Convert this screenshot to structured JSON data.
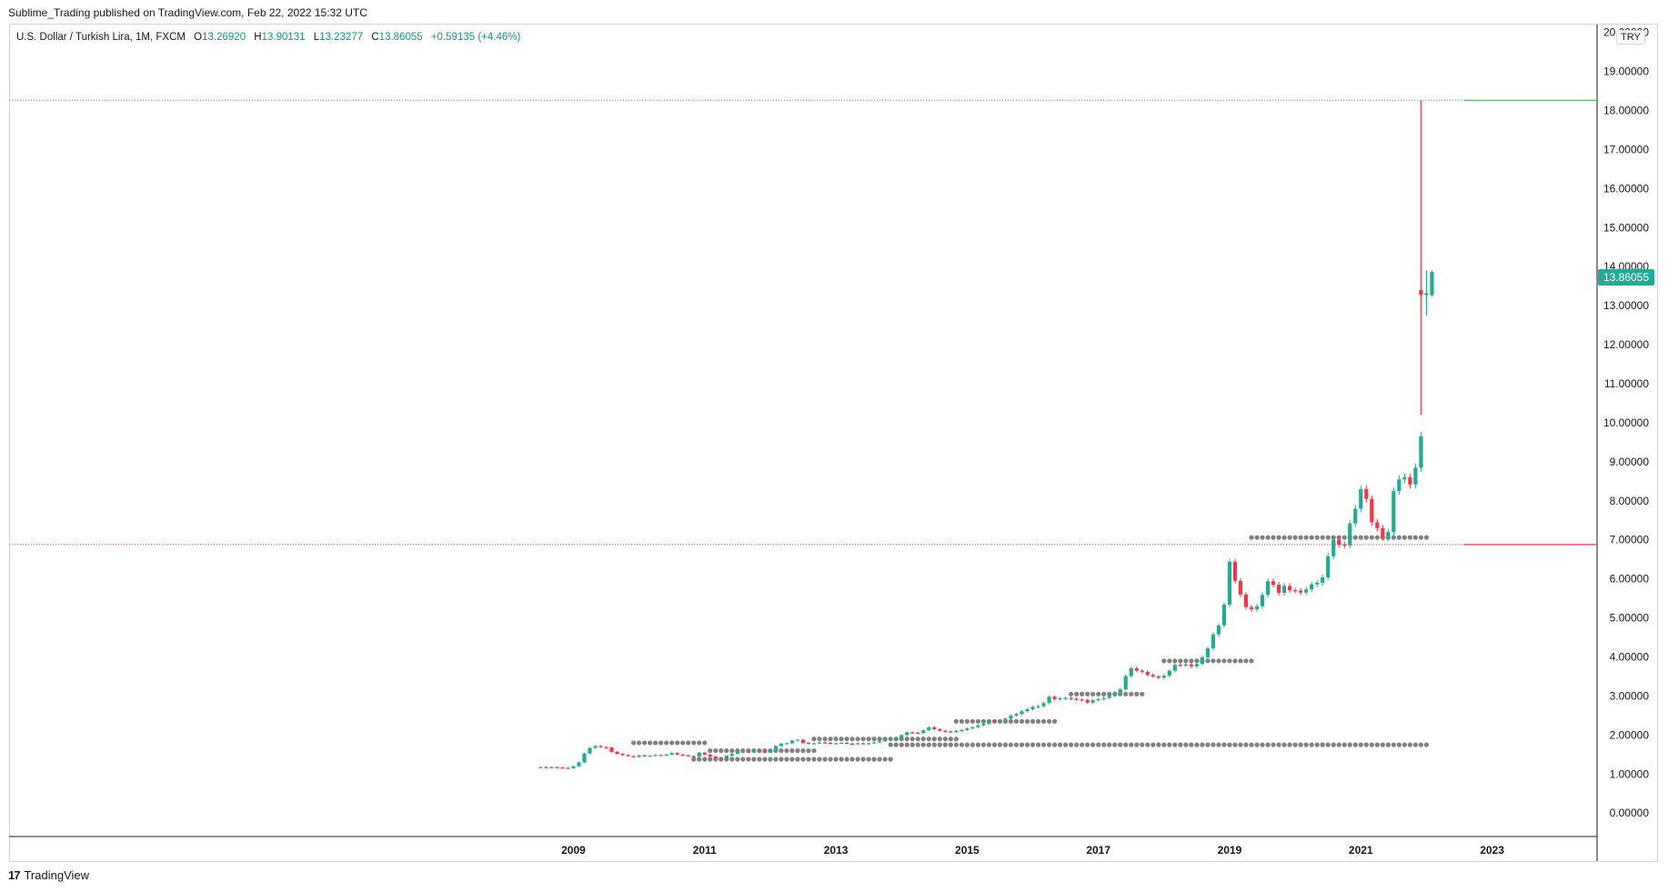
{
  "header": {
    "published": "Sublime_Trading published on TradingView.com, Feb 22, 2022 15:32 UTC"
  },
  "legend": {
    "symbol": "U.S. Dollar / Turkish Lira, 1M, FXCM",
    "open_label": "O",
    "open": "13.26920",
    "high_label": "H",
    "high": "13.90131",
    "low_label": "L",
    "low": "13.23277",
    "close_label": "C",
    "close": "13.86055",
    "change": "+0.59135 (+4.46%)"
  },
  "price_axis": {
    "currency": "TRY",
    "last_price": "13.86055"
  },
  "footer": {
    "brand": "TradingView",
    "logo": "17"
  },
  "colors": {
    "up": "#22ab94",
    "down": "#f23645",
    "dots": "#808080",
    "green_line": "#4caf50",
    "red_line": "#f23645",
    "grid": "#d1d4dc"
  },
  "chart_data": {
    "type": "candlestick",
    "y_ticks": [
      "20.00000",
      "19.00000",
      "18.00000",
      "17.00000",
      "16.00000",
      "15.00000",
      "14.00000",
      "13.00000",
      "12.00000",
      "11.00000",
      "10.00000",
      "9.00000",
      "8.00000",
      "7.00000",
      "6.00000",
      "5.00000",
      "4.00000",
      "3.00000",
      "2.00000",
      "1.00000",
      "0.00000"
    ],
    "x_ticks": [
      "2009",
      "2011",
      "2013",
      "2015",
      "2017",
      "2019",
      "2021",
      "2023"
    ],
    "ylim": [
      -0.6,
      20.2
    ],
    "xlim": [
      2000.4,
      2024.6
    ],
    "horizontal_lines": [
      {
        "price": 18.26,
        "color": "green"
      },
      {
        "price": 6.88,
        "color": "red"
      }
    ],
    "key_candles": [
      {
        "date": "2021-12",
        "open": 13.4,
        "high": 18.26,
        "low": 10.2,
        "close": 13.27
      },
      {
        "date": "2022-01",
        "open": 13.27,
        "high": 13.9,
        "low": 12.75,
        "close": 13.32
      },
      {
        "date": "2022-02",
        "open": 13.27,
        "high": 13.9,
        "low": 13.23,
        "close": 13.86
      }
    ],
    "monthly_closes": [
      1.18,
      1.17,
      1.18,
      1.17,
      1.16,
      1.15,
      1.2,
      1.3,
      1.53,
      1.67,
      1.72,
      1.69,
      1.68,
      1.57,
      1.52,
      1.49,
      1.46,
      1.44,
      1.48,
      1.46,
      1.47,
      1.49,
      1.48,
      1.5,
      1.54,
      1.5,
      1.48,
      1.46,
      1.45,
      1.55,
      1.5,
      1.45,
      1.42,
      1.41,
      1.47,
      1.52,
      1.58,
      1.58,
      1.56,
      1.6,
      1.58,
      1.55,
      1.62,
      1.72,
      1.78,
      1.79,
      1.86,
      1.88,
      1.8,
      1.78,
      1.79,
      1.81,
      1.8,
      1.78,
      1.79,
      1.8,
      1.78,
      1.77,
      1.79,
      1.78,
      1.79,
      1.81,
      1.84,
      1.87,
      1.9,
      1.93,
      2.0,
      2.07,
      2.06,
      2.05,
      2.12,
      2.2,
      2.15,
      2.11,
      2.09,
      2.08,
      2.11,
      2.13,
      2.17,
      2.2,
      2.25,
      2.29,
      2.37,
      2.36,
      2.38,
      2.42,
      2.5,
      2.54,
      2.61,
      2.66,
      2.72,
      2.74,
      2.82,
      2.98,
      2.92,
      2.94,
      2.95,
      2.93,
      2.91,
      2.9,
      2.83,
      2.89,
      2.92,
      2.95,
      3.01,
      3.09,
      3.17,
      3.51,
      3.71,
      3.65,
      3.62,
      3.54,
      3.5,
      3.47,
      3.52,
      3.65,
      3.8,
      3.79,
      3.81,
      3.76,
      3.82,
      3.99,
      4.22,
      4.58,
      4.81,
      5.34,
      6.44,
      5.95,
      5.6,
      5.28,
      5.22,
      5.3,
      5.59,
      5.94,
      5.85,
      5.64,
      5.82,
      5.71,
      5.7,
      5.65,
      5.73,
      5.86,
      5.9,
      6.04,
      6.58,
      7.0,
      6.88,
      6.86,
      7.42,
      7.8,
      8.3,
      8.05,
      7.45,
      7.3,
      7.06,
      7.2,
      8.25,
      8.55,
      8.6,
      8.42,
      8.85,
      9.65
    ],
    "pivot_dot_levels": [
      {
        "price": 1.75,
        "from": "2013-11",
        "to": "2022-01"
      },
      {
        "price": 7.06,
        "from": "2019-05",
        "to": "2022-01"
      },
      {
        "price": 3.9,
        "from": "2018-01",
        "to": "2019-05"
      },
      {
        "price": 3.05,
        "from": "2016-08",
        "to": "2017-09"
      },
      {
        "price": 2.35,
        "from": "2014-11",
        "to": "2016-05"
      },
      {
        "price": 1.9,
        "from": "2012-09",
        "to": "2014-11"
      },
      {
        "price": 1.8,
        "from": "2009-12",
        "to": "2011-01"
      },
      {
        "price": 1.6,
        "from": "2011-02",
        "to": "2012-09"
      },
      {
        "price": 1.38,
        "from": "2010-11",
        "to": "2013-11"
      }
    ]
  }
}
